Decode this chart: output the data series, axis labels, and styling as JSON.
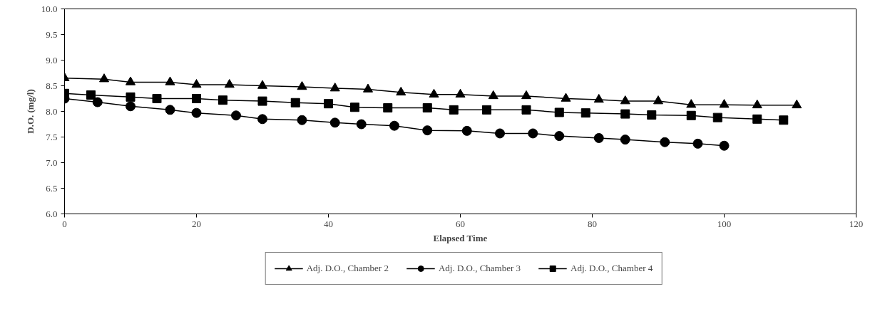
{
  "chart_data": {
    "type": "line",
    "xlabel": "Elapsed Time",
    "ylabel": "D.O. (mg/l)",
    "xlim": [
      0,
      120
    ],
    "xticks": [
      0,
      20,
      40,
      60,
      80,
      100,
      120
    ],
    "ylim": [
      6.0,
      10.0
    ],
    "yticks": [
      {
        "value": 6,
        "label": "6.0"
      },
      {
        "value": 6.5,
        "label": "6.5"
      },
      {
        "value": 7,
        "label": "7.0"
      },
      {
        "value": 7.5,
        "label": "7.5"
      },
      {
        "value": 8,
        "label": "8.0"
      },
      {
        "value": 8.5,
        "label": "8.5"
      },
      {
        "value": 9,
        "label": "9.0"
      },
      {
        "value": 9.5,
        "label": "9.5"
      },
      {
        "value": 10,
        "label": "10.0"
      }
    ],
    "grid": false,
    "legend": "bottom",
    "series": [
      {
        "name": "Adj. D.O., Chamber 2",
        "color": "#000000",
        "marker": "triangle",
        "x": [
          0,
          6,
          10,
          16,
          20,
          25,
          30,
          36,
          41,
          46,
          51,
          56,
          60,
          65,
          70,
          76,
          81,
          85,
          90,
          95,
          100,
          105,
          111
        ],
        "values": [
          8.65,
          8.63,
          8.57,
          8.57,
          8.52,
          8.52,
          8.5,
          8.48,
          8.45,
          8.43,
          8.37,
          8.33,
          8.33,
          8.3,
          8.3,
          8.25,
          8.23,
          8.2,
          8.2,
          8.13,
          8.13,
          8.12,
          8.12
        ]
      },
      {
        "name": "Adj. D.O., Chamber 3",
        "color": "#000000",
        "marker": "circle",
        "x": [
          0,
          5,
          10,
          16,
          20,
          26,
          30,
          36,
          41,
          45,
          50,
          55,
          61,
          66,
          71,
          75,
          81,
          85,
          91,
          96,
          100
        ],
        "values": [
          8.25,
          8.18,
          8.1,
          8.03,
          7.97,
          7.92,
          7.85,
          7.83,
          7.78,
          7.75,
          7.72,
          7.63,
          7.62,
          7.57,
          7.57,
          7.52,
          7.48,
          7.45,
          7.4,
          7.37,
          7.33
        ]
      },
      {
        "name": "Adj. D.O., Chamber 4",
        "color": "#000000",
        "marker": "square",
        "x": [
          0,
          4,
          10,
          14,
          20,
          24,
          30,
          35,
          40,
          44,
          49,
          55,
          59,
          64,
          70,
          75,
          79,
          85,
          89,
          95,
          99,
          105,
          109
        ],
        "values": [
          8.35,
          8.32,
          8.28,
          8.25,
          8.25,
          8.22,
          8.2,
          8.17,
          8.15,
          8.08,
          8.07,
          8.07,
          8.03,
          8.03,
          8.03,
          7.98,
          7.97,
          7.95,
          7.93,
          7.92,
          7.88,
          7.85,
          7.83
        ]
      }
    ]
  }
}
